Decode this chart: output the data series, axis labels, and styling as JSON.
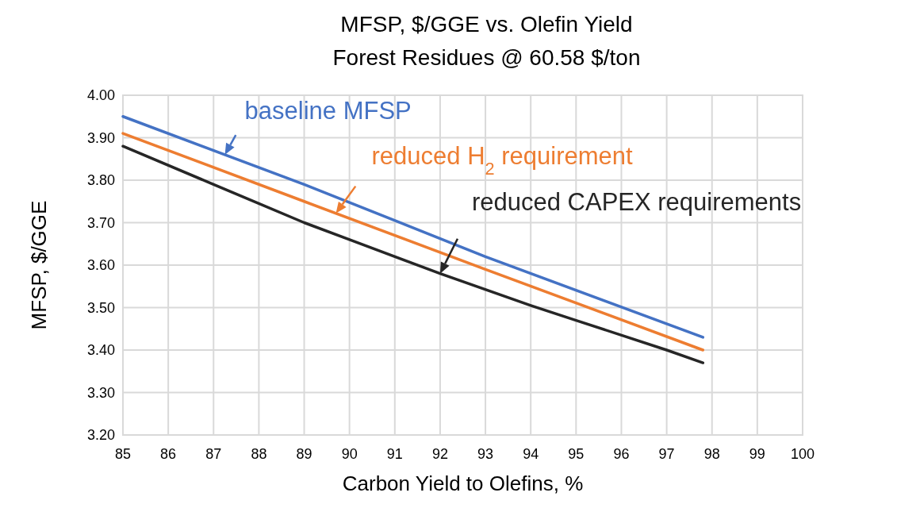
{
  "chart_data": {
    "type": "line",
    "title": "MFSP, $/GGE vs. Olefin Yield",
    "subtitle": "Forest Residues @ 60.58 $/ton",
    "xlabel": "Carbon Yield to Olefins, %",
    "ylabel": "MFSP, $/GGE",
    "xlim": [
      85,
      100
    ],
    "xticks": [
      85,
      86,
      87,
      88,
      89,
      90,
      91,
      92,
      93,
      94,
      95,
      96,
      97,
      98,
      99,
      100
    ],
    "ylim": [
      3.2,
      4.0
    ],
    "yticks": [
      {
        "value": 3.2,
        "label": "3.20"
      },
      {
        "value": 3.3,
        "label": "3.30"
      },
      {
        "value": 3.4,
        "label": "3.40"
      },
      {
        "value": 3.5,
        "label": "3.50"
      },
      {
        "value": 3.6,
        "label": "3.60"
      },
      {
        "value": 3.7,
        "label": "3.70"
      },
      {
        "value": 3.8,
        "label": "3.80"
      },
      {
        "value": 3.9,
        "label": "3.90"
      },
      {
        "value": 4.0,
        "label": "4.00"
      }
    ],
    "grid": true,
    "series": [
      {
        "color": "#4472c4",
        "x": [
          85,
          89,
          93,
          97.8
        ],
        "values": [
          3.95,
          3.79,
          3.62,
          3.43
        ]
      },
      {
        "color": "#ed7d31",
        "x": [
          85,
          89,
          93,
          97.8
        ],
        "values": [
          3.91,
          3.75,
          3.59,
          3.4
        ]
      },
      {
        "color": "#262626",
        "x": [
          85,
          87,
          89,
          90,
          92,
          94,
          95,
          97,
          97.8
        ],
        "values": [
          3.88,
          3.79,
          3.7,
          3.66,
          3.58,
          3.505,
          3.47,
          3.4,
          3.37
        ]
      }
    ],
    "annotations": [
      {
        "text": "baseline MFSP",
        "x": 87.25,
        "y": 3.86
      },
      {
        "text": "reduced H$_{2}$ requirement",
        "x": 89.7,
        "y": 3.722
      },
      {
        "text": "reduced CAPEX requirements",
        "x": 92,
        "y": 3.58
      }
    ]
  }
}
